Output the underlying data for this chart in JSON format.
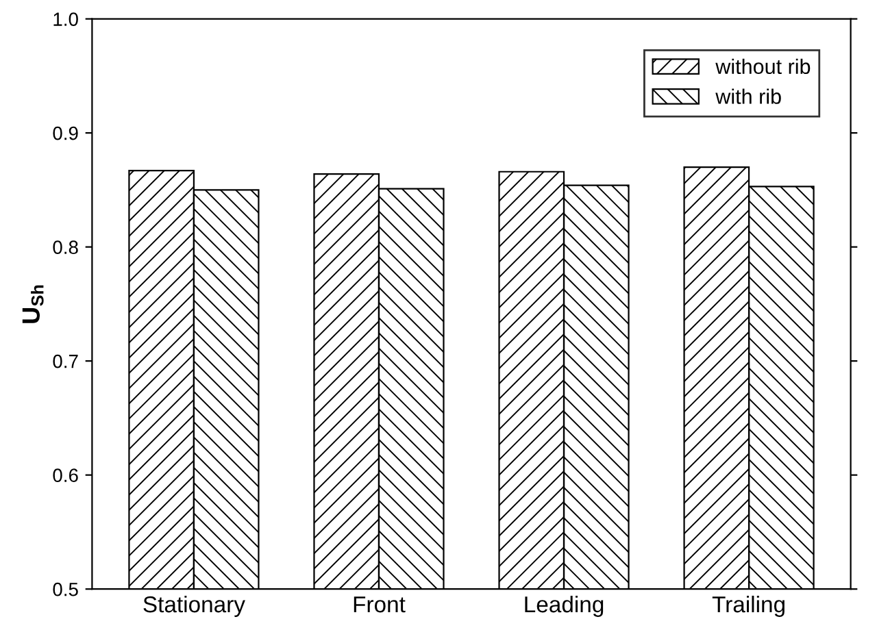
{
  "chart_data": {
    "type": "bar",
    "ylabel": "U$_{Sh}$",
    "categories": [
      "Stationary",
      "Front",
      "Leading",
      "Trailing"
    ],
    "series": [
      {
        "name": "without rib",
        "color": "#000000",
        "values": [
          0.867,
          0.864,
          0.866,
          0.87
        ]
      },
      {
        "name": "with rib",
        "color": "#000000",
        "values": [
          0.85,
          0.851,
          0.854,
          0.853
        ]
      }
    ],
    "ylim": [
      0.5,
      1.0
    ],
    "yticks": [
      0.5,
      0.6,
      0.7,
      0.8,
      0.9,
      {
        "value": 1.0,
        "label": "1.0"
      }
    ],
    "grid": false,
    "legend": "top right"
  }
}
